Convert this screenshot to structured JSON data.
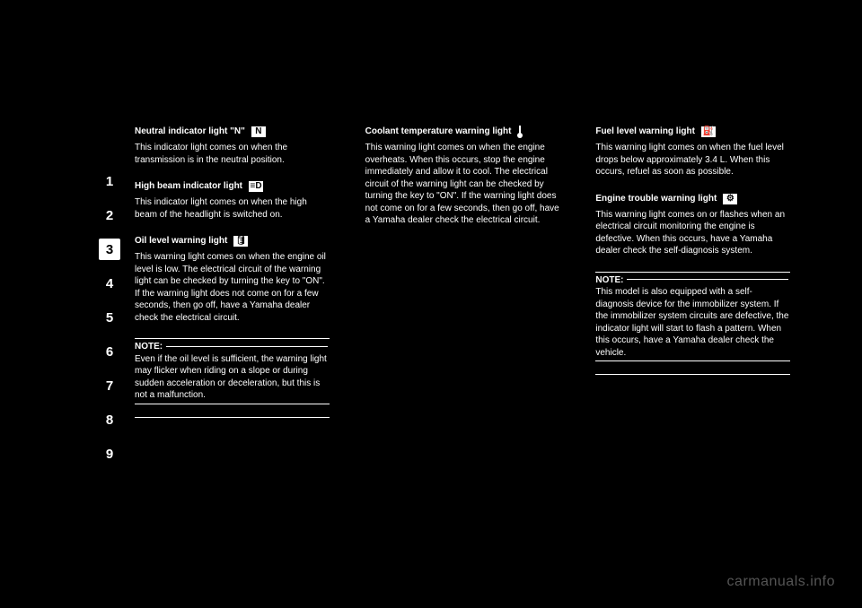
{
  "tabs": [
    "1",
    "2",
    "3",
    "4",
    "5",
    "6",
    "7",
    "8",
    "9"
  ],
  "active_tab_index": 2,
  "watermark": "carmanuals.info",
  "col1": {
    "neutral": {
      "icon": "N",
      "title": "Neutral indicator light \"N\"",
      "body": "This indicator light comes on when the transmission is in the neutral position."
    },
    "highbeam": {
      "icon": "≡D",
      "title": "High beam indicator light",
      "body": "This indicator light comes on when the high beam of the headlight is switched on."
    },
    "oil": {
      "icon": "🛢",
      "title": "Oil level warning light",
      "body": "This warning light comes on when the engine oil level is low. The electrical circuit of the warning light can be checked by turning the key to \"ON\". If the warning light does not come on for a few seconds, then go off, have a Yamaha dealer check the electrical circuit."
    },
    "note_label": "NOTE:",
    "note_body": "Even if the oil level is sufficient, the warning light may flicker when riding on a slope or during sudden acceleration or deceleration, but this is not a malfunction."
  },
  "col2": {
    "temp": {
      "title": "Coolant temperature warning light",
      "body": "This warning light comes on when the engine overheats. When this occurs, stop the engine immediately and allow it to cool. The electrical circuit of the warning light can be checked by turning the key to \"ON\". If the warning light does not come on for a few seconds, then go off, have a Yamaha dealer check the electrical circuit."
    }
  },
  "col3": {
    "fuel": {
      "icon": "⛽",
      "title": "Fuel level warning light",
      "body": "This warning light comes on when the fuel level drops below approximately 3.4 L. When this occurs, refuel as soon as possible."
    },
    "engine": {
      "icon": "⚙",
      "title": "Engine trouble warning light",
      "body": "This warning light comes on or flashes when an electrical circuit monitoring the engine is defective. When this occurs, have a Yamaha dealer check the self-diagnosis system."
    },
    "note_label": "NOTE:",
    "note_body": "This model is also equipped with a self-diagnosis device for the immobilizer system. If the immobilizer system circuits are defective, the indicator light will start to flash a pattern. When this occurs, have a Yamaha dealer check the vehicle."
  },
  "colors": {
    "bg": "#000000",
    "fg": "#ffffff",
    "tab_inactive_bg": "#000000",
    "tab_active_bg": "#ffffff",
    "watermark": "#555555"
  }
}
